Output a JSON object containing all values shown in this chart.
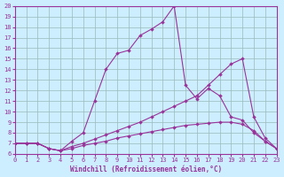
{
  "bg_color": "#cceeff",
  "line_color": "#993399",
  "grid_color": "#99bbbb",
  "xlabel": "Windchill (Refroidissement éolien,°C)",
  "xlim": [
    0,
    23
  ],
  "ylim": [
    6,
    20
  ],
  "xticks": [
    0,
    1,
    2,
    3,
    4,
    5,
    6,
    7,
    8,
    9,
    10,
    11,
    12,
    13,
    14,
    15,
    16,
    17,
    18,
    19,
    20,
    21,
    22,
    23
  ],
  "yticks": [
    6,
    7,
    8,
    9,
    10,
    11,
    12,
    13,
    14,
    15,
    16,
    17,
    18,
    19,
    20
  ],
  "series": [
    {
      "x": [
        0,
        1,
        2,
        3,
        4,
        5,
        6,
        7,
        8,
        9,
        10,
        11,
        12,
        13,
        14,
        15,
        16,
        17,
        18,
        19,
        20,
        21,
        22,
        23
      ],
      "y": [
        7.0,
        7.0,
        7.0,
        6.5,
        6.3,
        6.5,
        6.8,
        7.0,
        7.2,
        7.5,
        7.7,
        7.9,
        8.1,
        8.3,
        8.5,
        8.7,
        8.8,
        8.9,
        9.0,
        9.0,
        8.8,
        8.2,
        7.2,
        6.5
      ]
    },
    {
      "x": [
        0,
        1,
        2,
        3,
        4,
        5,
        6,
        7,
        8,
        9,
        10,
        11,
        12,
        13,
        14,
        15,
        16,
        17,
        18,
        19,
        20,
        21,
        22,
        23
      ],
      "y": [
        7.0,
        7.0,
        7.0,
        6.5,
        6.3,
        6.7,
        7.0,
        7.4,
        7.8,
        8.2,
        8.6,
        9.0,
        9.5,
        10.0,
        10.5,
        11.0,
        11.5,
        12.5,
        13.5,
        14.5,
        15.0,
        9.5,
        7.5,
        6.5
      ]
    },
    {
      "x": [
        0,
        1,
        2,
        3,
        4,
        5,
        6,
        7,
        8,
        9,
        10,
        11,
        12,
        13,
        14,
        15,
        16,
        17,
        18,
        19,
        20,
        21,
        22,
        23
      ],
      "y": [
        7.0,
        7.0,
        7.0,
        6.5,
        6.3,
        7.2,
        8.0,
        11.0,
        14.0,
        15.5,
        15.8,
        17.2,
        17.8,
        18.5,
        20.0,
        12.5,
        11.2,
        12.2,
        11.5,
        9.5,
        9.2,
        8.0,
        7.2,
        6.5
      ]
    }
  ]
}
